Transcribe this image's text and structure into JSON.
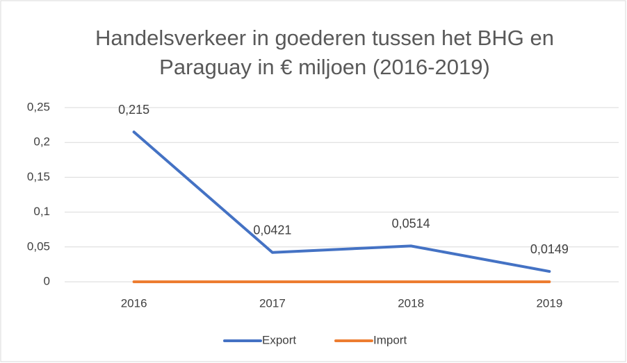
{
  "chart_data": {
    "type": "line",
    "title": "Handelsverkeer in goederen tussen het BHG en Paraguay in € miljoen (2016-2019)",
    "categories": [
      "2016",
      "2017",
      "2018",
      "2019"
    ],
    "series": [
      {
        "name": "Export",
        "color": "#4472c4",
        "values": [
          0.215,
          0.0421,
          0.0514,
          0.0149
        ],
        "value_labels": [
          "0,215",
          "0,0421",
          "0,0514",
          "0,0149"
        ]
      },
      {
        "name": "Import",
        "color": "#ed7d31",
        "values": [
          0,
          0,
          0,
          0
        ]
      }
    ],
    "ylim": [
      0,
      0.25
    ],
    "yticks": [
      0,
      {
        "value": 0.05,
        "label": "0,05"
      },
      {
        "value": 0.1,
        "label": "0,1"
      },
      {
        "value": 0.15,
        "label": "0,15"
      },
      {
        "value": 0.2,
        "label": "0,2"
      },
      {
        "value": 0.25,
        "label": "0,25"
      }
    ],
    "grid": true,
    "legend": "bottom"
  }
}
